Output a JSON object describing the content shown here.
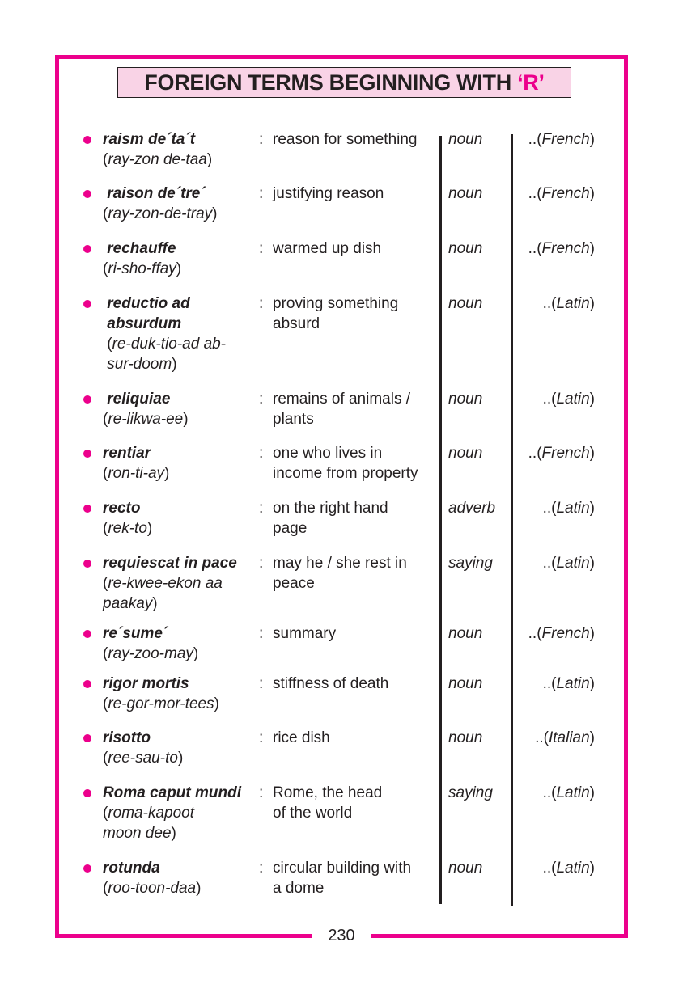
{
  "title": {
    "main": "FOREIGN TERMS BEGINNING WITH ",
    "letter": "‘R’"
  },
  "page_number": "230",
  "colors": {
    "accent": "#ec008c",
    "title_bg": "#f9d3e6"
  },
  "entries": [
    {
      "term": [
        "raism de´ta´t"
      ],
      "pron": [
        "ray-zon de-taa"
      ],
      "meaning": [
        "reason for something"
      ],
      "pos": "noun",
      "origin": "French"
    },
    {
      "term": [
        " raison de´tre´"
      ],
      "pron": [
        "ray-zon-de-tray"
      ],
      "meaning": [
        "justifying reason"
      ],
      "pos": "noun",
      "origin": "French"
    },
    {
      "term": [
        " rechauffe"
      ],
      "pron": [
        "ri-sho-ffay"
      ],
      "meaning": [
        "warmed up dish"
      ],
      "pos": "noun",
      "origin": "French"
    },
    {
      "term": [
        " reductio ad",
        " absurdum"
      ],
      "pron": [
        " re-duk-tio-ad ab-",
        " sur-doom"
      ],
      "meaning": [
        "proving something",
        "absurd"
      ],
      "pos": "noun",
      "origin": "Latin"
    },
    {
      "term": [
        " reliquiae"
      ],
      "pron": [
        "re-likwa-ee"
      ],
      "meaning": [
        "remains of animals /",
        "plants"
      ],
      "pos": "noun",
      "origin": "Latin"
    },
    {
      "term": [
        "rentiar"
      ],
      "pron": [
        "ron-ti-ay"
      ],
      "meaning": [
        "one who lives in",
        "income from property"
      ],
      "pos": "noun",
      "origin": "French"
    },
    {
      "term": [
        "recto"
      ],
      "pron": [
        "rek-to"
      ],
      "meaning": [
        "on the right hand",
        "page"
      ],
      "pos": "adverb",
      "origin": "Latin"
    },
    {
      "term": [
        "requiescat in pace"
      ],
      "pron": [
        "re-kwee-ekon aa",
        "paakay"
      ],
      "meaning": [
        "may he / she rest in",
        "peace"
      ],
      "pos": "saying",
      "origin": "Latin"
    },
    {
      "term": [
        "re´sume´"
      ],
      "pron": [
        "ray-zoo-may"
      ],
      "meaning": [
        "summary"
      ],
      "pos": "noun",
      "origin": "French"
    },
    {
      "term": [
        "rigor mortis"
      ],
      "pron": [
        "re-gor-mor-tees"
      ],
      "meaning": [
        "stiffness of death"
      ],
      "pos": "noun",
      "origin": "Latin"
    },
    {
      "term": [
        "risotto"
      ],
      "pron": [
        "ree-sau-to"
      ],
      "meaning": [
        "rice dish"
      ],
      "pos": "noun",
      "origin": "Italian"
    },
    {
      "term": [
        "Roma caput mundi"
      ],
      "pron": [
        "roma-kapoot",
        "moon dee"
      ],
      "meaning": [
        "Rome, the head",
        "of the world"
      ],
      "pos": "saying",
      "origin": "Latin"
    },
    {
      "term": [
        "rotunda"
      ],
      "pron": [
        "roo-toon-daa"
      ],
      "meaning": [
        "circular building with",
        "a dome"
      ],
      "pos": "noun",
      "origin": "Latin"
    }
  ]
}
